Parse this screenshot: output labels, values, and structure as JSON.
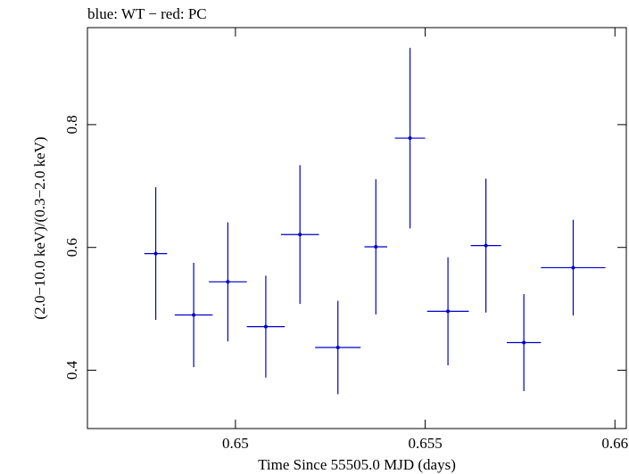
{
  "header": {
    "title": "blue: WT − red: PC"
  },
  "chart_data": {
    "type": "scatter",
    "title": "blue: WT − red: PC",
    "xlabel": "Time Since 55505.0 MJD (days)",
    "ylabel": "(2.0−10.0 keV)/(0.3−2.0 keV)",
    "xlim": [
      0.6461,
      0.6603
    ],
    "ylim": [
      0.305,
      0.958
    ],
    "x_ticks": [
      0.65,
      0.655,
      0.66
    ],
    "x_tick_labels": [
      "0.65",
      "0.655",
      "0.66"
    ],
    "y_ticks": [
      0.4,
      0.6,
      0.8
    ],
    "y_tick_labels": [
      "0.4",
      "0.6",
      "0.8"
    ],
    "grid": false,
    "colors": {
      "WT": "#0000cc",
      "axis": "#000000"
    },
    "series": [
      {
        "name": "WT",
        "x": [
          0.6479,
          0.6489,
          0.6498,
          0.6508,
          0.6517,
          0.6527,
          0.6537,
          0.6546,
          0.6556,
          0.6566,
          0.6576,
          0.6589
        ],
        "xerr": [
          0.0003,
          0.0005,
          0.0005,
          0.0005,
          0.0005,
          0.0006,
          0.0003,
          0.0004,
          0.00055,
          0.0004,
          0.00045,
          0.00085
        ],
        "y": [
          0.59,
          0.49,
          0.544,
          0.471,
          0.621,
          0.437,
          0.601,
          0.778,
          0.496,
          0.603,
          0.445,
          0.567
        ],
        "yerr_low": [
          0.108,
          0.085,
          0.097,
          0.083,
          0.113,
          0.076,
          0.11,
          0.147,
          0.088,
          0.109,
          0.079,
          0.078
        ],
        "yerr_high": [
          0.108,
          0.085,
          0.097,
          0.083,
          0.113,
          0.076,
          0.11,
          0.147,
          0.088,
          0.109,
          0.079,
          0.078
        ]
      }
    ]
  }
}
